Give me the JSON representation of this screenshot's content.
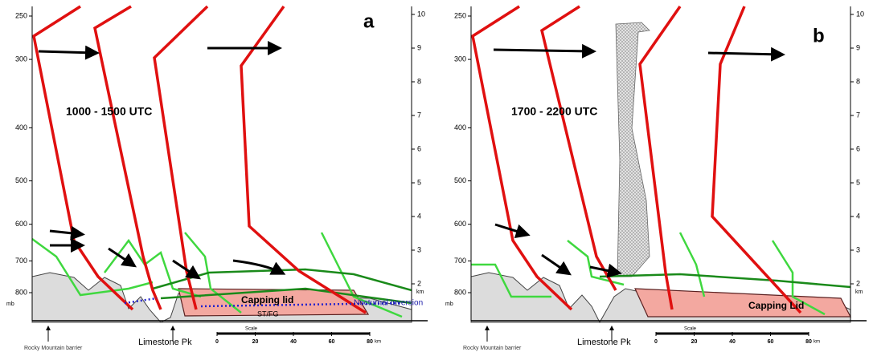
{
  "panels": [
    {
      "label": "a",
      "time": "1000 - 1500  UTC",
      "pressure_ticks": [
        250,
        300,
        400,
        500,
        600,
        700,
        800
      ],
      "pressure_unit": "mb",
      "height_ticks": [
        10,
        9,
        8,
        7,
        6,
        5,
        4,
        3,
        2
      ],
      "height_unit": "km",
      "capping": "Capping lid",
      "inversion": "Nocturnal Inversion",
      "fog": "ST/FG",
      "barrier": "Rocky Mountain barrier",
      "peak": "Limestone Pk",
      "scale_title": "Scale",
      "scale_ticks": [
        0,
        20,
        40,
        60,
        80
      ],
      "scale_unit": "km"
    },
    {
      "label": "b",
      "time": "1700 - 2200 UTC",
      "pressure_ticks": [
        250,
        300,
        400,
        500,
        600,
        700,
        800
      ],
      "pressure_unit": "mb",
      "height_ticks": [
        10,
        9,
        8,
        7,
        6,
        5,
        4,
        3,
        2
      ],
      "height_unit": "km",
      "capping": "Capping Lid",
      "barrier": "Rocky Mountain barrier",
      "peak": "Limestone Pk",
      "scale_title": "Scale",
      "scale_ticks": [
        0,
        20,
        40,
        60,
        80
      ],
      "scale_unit": "km"
    }
  ]
}
